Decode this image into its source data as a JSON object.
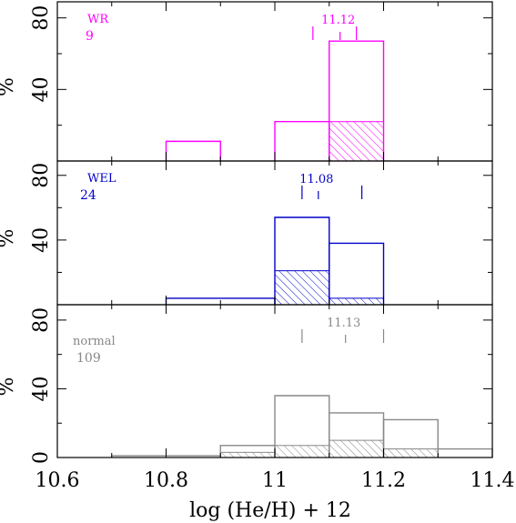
{
  "chart_data": {
    "type": "bar",
    "xlabel": "log (He/H)  +  12",
    "ylabel": "%",
    "xlim": [
      10.6,
      11.4
    ],
    "x_ticks": [
      "10.6",
      "10.8",
      "11",
      "11.2",
      "11.4"
    ],
    "ylim": [
      0,
      90
    ],
    "y_ticks": [
      "0",
      "40",
      "80"
    ],
    "bin_edges": [
      10.7,
      10.8,
      10.9,
      11.0,
      11.1,
      11.2,
      11.3,
      11.4
    ],
    "panels": [
      {
        "label": "WR",
        "count": "9",
        "color": "#ff00ff",
        "median_label": "11.12",
        "markers": [
          11.07,
          11.12,
          11.15
        ],
        "series": [
          {
            "name": "",
            "style": "open",
            "bins": [
              {
                "lo": 10.8,
                "hi": 10.9,
                "value": 11
              },
              {
                "lo": 11.0,
                "hi": 11.1,
                "value": 22
              },
              {
                "lo": 11.1,
                "hi": 11.2,
                "value": 67
              }
            ]
          },
          {
            "name": "",
            "style": "hatched",
            "bins": [
              {
                "lo": 11.1,
                "hi": 11.2,
                "value": 22
              }
            ]
          }
        ]
      },
      {
        "label": "WEL",
        "count": "24",
        "color": "#0000cc",
        "median_label": "11.08",
        "markers": [
          11.05,
          11.08,
          11.16
        ],
        "series": [
          {
            "name": "",
            "style": "open",
            "bins": [
              {
                "lo": 10.8,
                "hi": 11.0,
                "value": 4
              },
              {
                "lo": 11.0,
                "hi": 11.1,
                "value": 54
              },
              {
                "lo": 11.1,
                "hi": 11.2,
                "value": 38
              }
            ]
          },
          {
            "name": "",
            "style": "hatched",
            "bins": [
              {
                "lo": 11.0,
                "hi": 11.1,
                "value": 21
              },
              {
                "lo": 11.1,
                "hi": 11.2,
                "value": 4
              }
            ]
          }
        ]
      },
      {
        "label": "normal",
        "count": "109",
        "color": "#888888",
        "median_label": "11.13",
        "markers": [
          11.05,
          11.13,
          11.2
        ],
        "series": [
          {
            "name": "",
            "style": "open",
            "bins": [
              {
                "lo": 10.7,
                "hi": 10.9,
                "value": 1
              },
              {
                "lo": 10.9,
                "hi": 11.0,
                "value": 7
              },
              {
                "lo": 11.0,
                "hi": 11.1,
                "value": 36
              },
              {
                "lo": 11.1,
                "hi": 11.2,
                "value": 26
              },
              {
                "lo": 11.2,
                "hi": 11.3,
                "value": 22
              },
              {
                "lo": 11.3,
                "hi": 11.4,
                "value": 5
              }
            ]
          },
          {
            "name": "",
            "style": "hatched",
            "bins": [
              {
                "lo": 10.9,
                "hi": 11.0,
                "value": 3
              },
              {
                "lo": 11.0,
                "hi": 11.1,
                "value": 7
              },
              {
                "lo": 11.1,
                "hi": 11.2,
                "value": 10
              },
              {
                "lo": 11.2,
                "hi": 11.3,
                "value": 5
              }
            ]
          }
        ]
      }
    ]
  }
}
